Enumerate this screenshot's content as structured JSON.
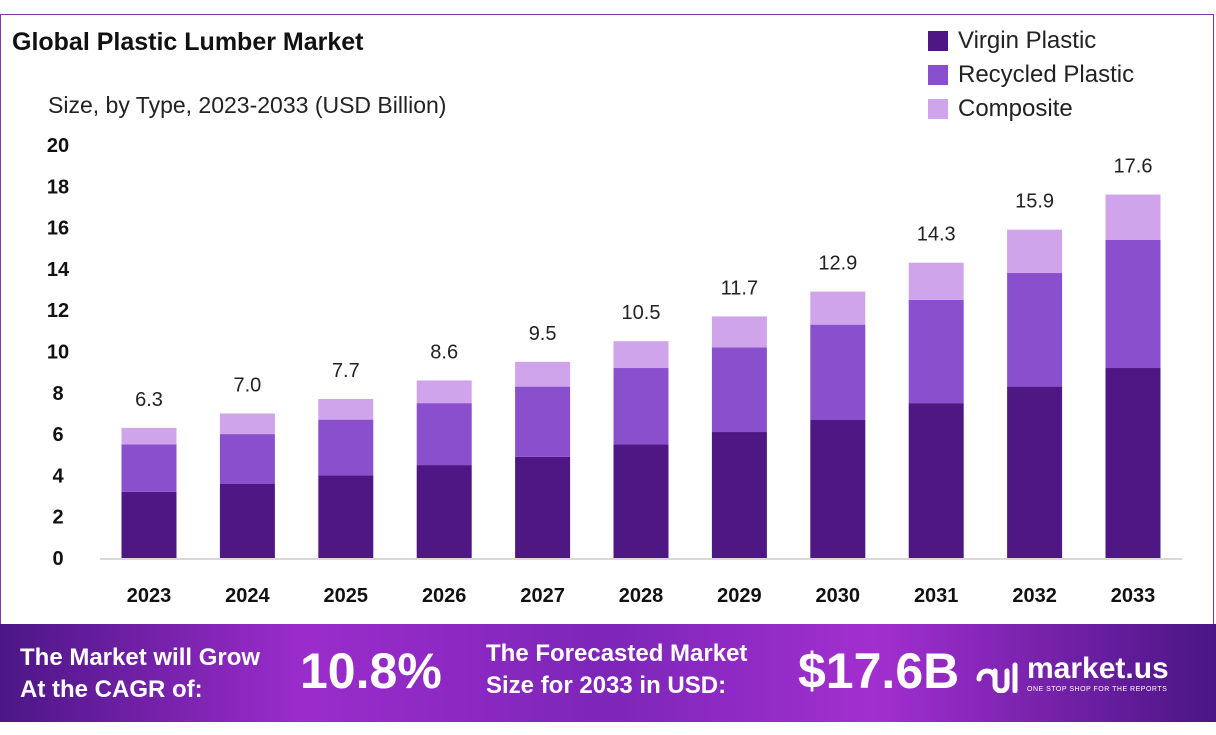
{
  "chart_data": {
    "type": "bar",
    "stacked": true,
    "title": "Global Plastic Lumber Market",
    "subtitle": "Size, by Type, 2023-2033 (USD Billion)",
    "categories": [
      "2023",
      "2024",
      "2025",
      "2026",
      "2027",
      "2028",
      "2029",
      "2030",
      "2031",
      "2032",
      "2033"
    ],
    "series": [
      {
        "name": "Virgin Plastic",
        "color": "#4f1783",
        "values": [
          3.2,
          3.6,
          4.0,
          4.5,
          4.9,
          5.5,
          6.1,
          6.7,
          7.5,
          8.3,
          9.2
        ]
      },
      {
        "name": "Recycled Plastic",
        "color": "#8a4fcc",
        "values": [
          2.3,
          2.4,
          2.7,
          3.0,
          3.4,
          3.7,
          4.1,
          4.6,
          5.0,
          5.5,
          6.2
        ]
      },
      {
        "name": "Composite",
        "color": "#cfa4ea",
        "values": [
          0.8,
          1.0,
          1.0,
          1.1,
          1.2,
          1.3,
          1.5,
          1.6,
          1.8,
          2.1,
          2.2
        ]
      }
    ],
    "totals": [
      "6.3",
      "7.0",
      "7.7",
      "8.6",
      "9.5",
      "10.5",
      "11.7",
      "12.9",
      "14.3",
      "15.9",
      "17.6"
    ],
    "ylim": [
      0,
      20
    ],
    "yticks": [
      "0",
      "2",
      "4",
      "6",
      "8",
      "10",
      "12",
      "14",
      "16",
      "18",
      "20"
    ],
    "grid": false,
    "legend": "top-right"
  },
  "footer": {
    "cagr_line1": "The Market will Grow",
    "cagr_line2": "At the CAGR of:",
    "cagr_value": "10.8%",
    "forecast_line1": "The Forecasted Market",
    "forecast_line2": "Size for 2033 in USD:",
    "forecast_value": "$17.6B",
    "logo_name": "market.us",
    "logo_tagline": "ONE STOP SHOP FOR THE REPORTS"
  }
}
